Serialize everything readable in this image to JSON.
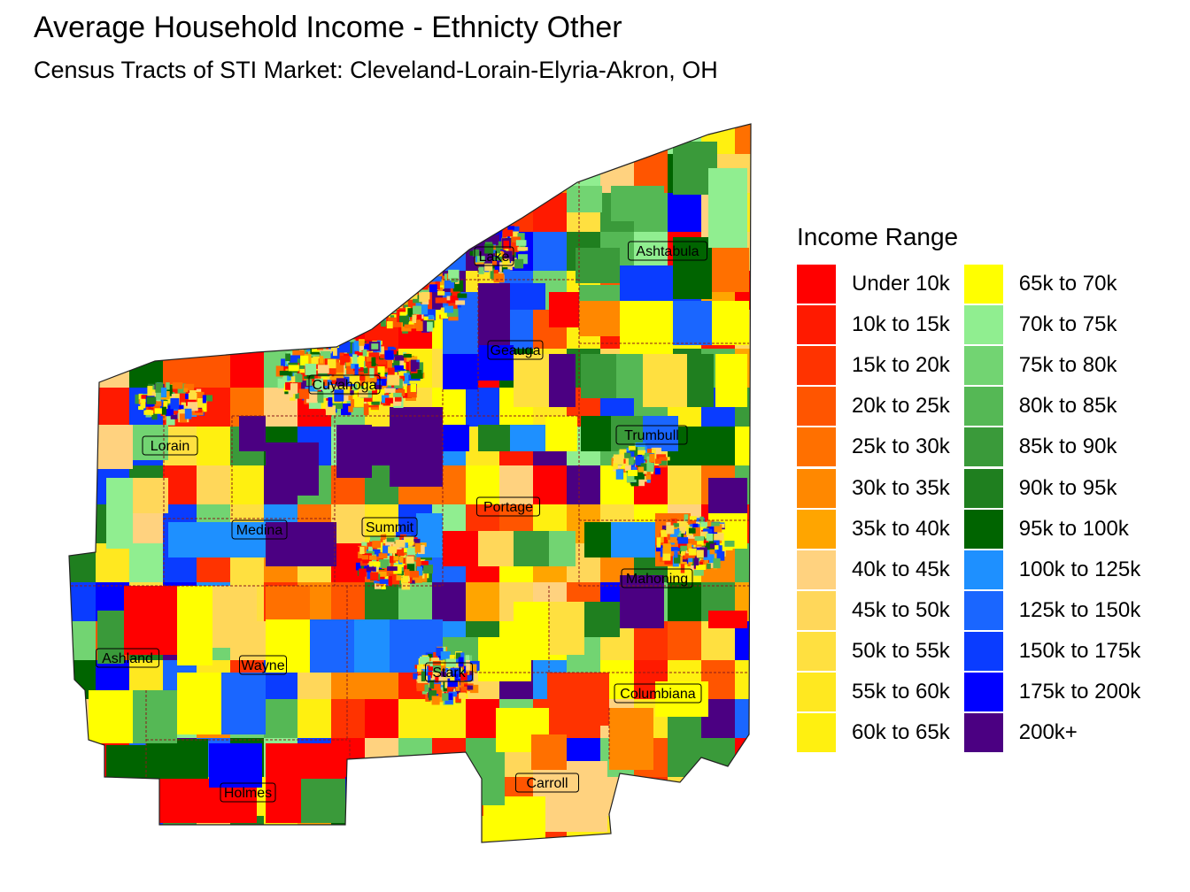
{
  "title": "Average Household Income - Ethnicty Other",
  "subtitle": "Census Tracts of STI Market: Cleveland-Lorain-Elyria-Akron, OH",
  "legend": {
    "title": "Income Range",
    "items": [
      {
        "label": "Under 10k",
        "color": "#ff0000"
      },
      {
        "label": "10k to 15k",
        "color": "#ff1a00"
      },
      {
        "label": "15k to 20k",
        "color": "#ff3300"
      },
      {
        "label": "20k to 25k",
        "color": "#ff5500"
      },
      {
        "label": "25k to 30k",
        "color": "#ff7000"
      },
      {
        "label": "30k to 35k",
        "color": "#ff8800"
      },
      {
        "label": "35k to 40k",
        "color": "#ffa500"
      },
      {
        "label": "40k to 45k",
        "color": "#ffd27f"
      },
      {
        "label": "45k to 50k",
        "color": "#ffd75a"
      },
      {
        "label": "50k to 55k",
        "color": "#ffe040"
      },
      {
        "label": "55k to 60k",
        "color": "#ffe820"
      },
      {
        "label": "60k to 65k",
        "color": "#fff010"
      },
      {
        "label": "65k to 70k",
        "color": "#ffff00"
      },
      {
        "label": "70k to 75k",
        "color": "#90ee90"
      },
      {
        "label": "75k to 80k",
        "color": "#72d472"
      },
      {
        "label": "80k to 85k",
        "color": "#55b855"
      },
      {
        "label": "85k to 90k",
        "color": "#3a9a3a"
      },
      {
        "label": "90k to 95k",
        "color": "#1f7f1f"
      },
      {
        "label": "95k to 100k",
        "color": "#006400"
      },
      {
        "label": "100k to 125k",
        "color": "#1e90ff"
      },
      {
        "label": "125k to 150k",
        "color": "#1a66ff"
      },
      {
        "label": "150k to 175k",
        "color": "#0a3cff"
      },
      {
        "label": "175k to 200k",
        "color": "#0000ff"
      },
      {
        "label": "200k+",
        "color": "#4b0082"
      }
    ]
  },
  "counties": [
    {
      "name": "Lake"
    },
    {
      "name": "Ashtabula"
    },
    {
      "name": "Geauga"
    },
    {
      "name": "Cuyahoga"
    },
    {
      "name": "Trumbull"
    },
    {
      "name": "Lorain"
    },
    {
      "name": "Portage"
    },
    {
      "name": "Medina"
    },
    {
      "name": "Summit"
    },
    {
      "name": "Mahoning"
    },
    {
      "name": "Ashland"
    },
    {
      "name": "Wayne"
    },
    {
      "name": "Stark"
    },
    {
      "name": "Columbiana"
    },
    {
      "name": "Carroll"
    },
    {
      "name": "Holmes"
    }
  ]
}
